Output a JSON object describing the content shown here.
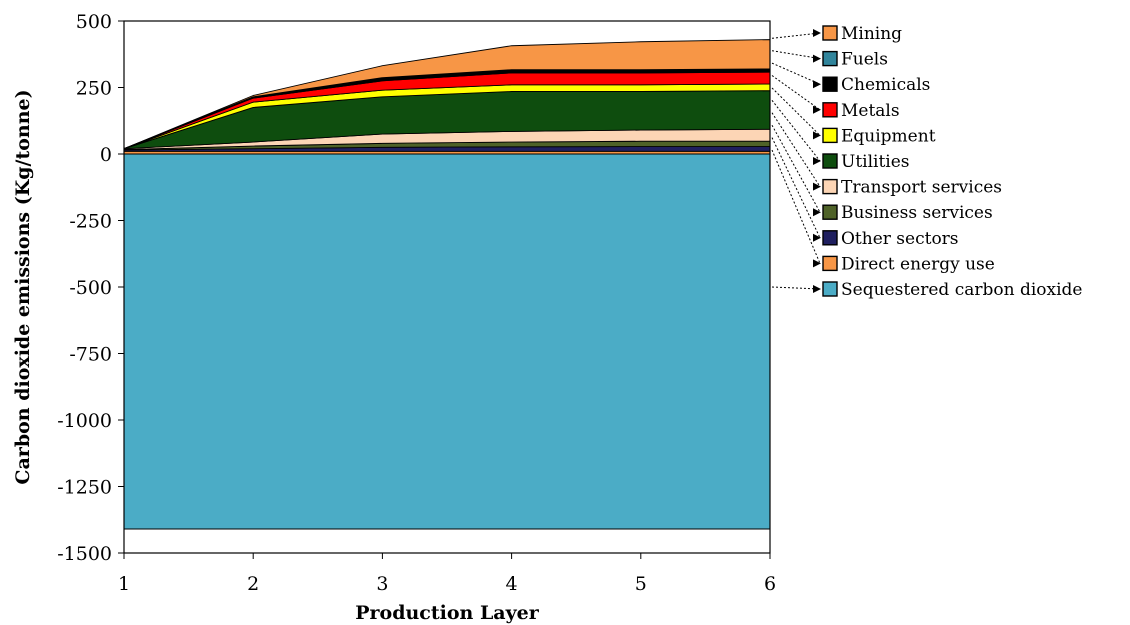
{
  "chart_data": {
    "type": "area",
    "xlabel": "Production Layer",
    "ylabel": "Carbon dioxide emissions (Kg/tonne)",
    "x": [
      1,
      2,
      3,
      4,
      5,
      6
    ],
    "xlim": [
      1,
      6
    ],
    "ylim": [
      -1500,
      500
    ],
    "yticks": [
      500,
      250,
      0,
      -250,
      -500,
      -750,
      -1000,
      -1250,
      -1500
    ],
    "grid": false,
    "legend_position": "right",
    "negative_series": [
      {
        "name": "Sequestered carbon dioxide",
        "color": "#4bacc6",
        "values": [
          -1410,
          -1410,
          -1410,
          -1410,
          -1410,
          -1410
        ]
      }
    ],
    "positive_series": [
      {
        "name": "Direct energy use",
        "color": "#f79646",
        "values": [
          10,
          10,
          10,
          10,
          10,
          10
        ]
      },
      {
        "name": "Other sectors",
        "color": "#1f1f5f",
        "values": [
          5,
          10,
          15,
          17,
          18,
          18
        ]
      },
      {
        "name": "Business services",
        "color": "#4f6228",
        "values": [
          2,
          10,
          15,
          18,
          20,
          20
        ]
      },
      {
        "name": "Transport services",
        "color": "#fcd5b5",
        "values": [
          3,
          15,
          35,
          40,
          42,
          45
        ]
      },
      {
        "name": "Utilities",
        "color": "#0e4d0e",
        "values": [
          0,
          130,
          140,
          150,
          145,
          145
        ]
      },
      {
        "name": "Equipment",
        "color": "#ffff00",
        "values": [
          0,
          20,
          25,
          25,
          25,
          25
        ]
      },
      {
        "name": "Metals",
        "color": "#ff0000",
        "values": [
          0,
          15,
          35,
          45,
          45,
          45
        ]
      },
      {
        "name": "Chemicals",
        "color": "#000000",
        "values": [
          0,
          5,
          10,
          10,
          10,
          10
        ]
      },
      {
        "name": "Fuels",
        "color": "#31859c",
        "values": [
          0,
          0,
          2,
          2,
          2,
          2
        ]
      },
      {
        "name": "Mining",
        "color": "#f79646",
        "values": [
          0,
          5,
          45,
          90,
          105,
          110
        ]
      }
    ],
    "legend": [
      "Mining",
      "Fuels",
      "Chemicals",
      "Metals",
      "Equipment",
      "Utilities",
      "Transport services",
      "Business services",
      "Other sectors",
      "Direct energy use",
      "Sequestered carbon dioxide"
    ]
  }
}
